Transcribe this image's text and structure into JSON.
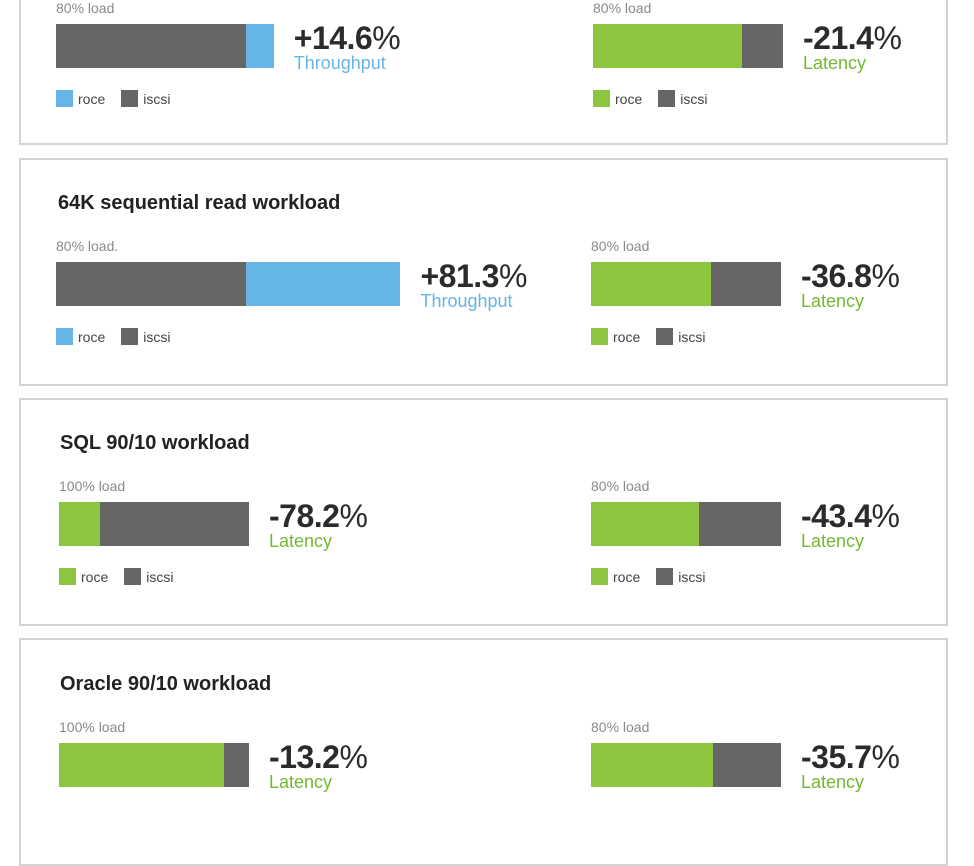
{
  "colors": {
    "roce_throughput": "#65b6e6",
    "roce_latency": "#8cc63f",
    "iscsi": "#666666",
    "throughput_text": "#65b6e6",
    "latency_text": "#72b832"
  },
  "legend": {
    "roce": "roce",
    "iscsi": "iscsi"
  },
  "chart_data": [
    {
      "type": "bar",
      "title": "",
      "panels": [
        {
          "load": "80% load",
          "metric": "Throughput",
          "sign": "+",
          "value": 14.6,
          "series": [
            {
              "name": "iscsi",
              "value": 1
            },
            {
              "name": "roce",
              "value": 1.146
            }
          ]
        },
        {
          "load": "80% load",
          "metric": "Latency",
          "sign": "-",
          "value": 21.4,
          "series": [
            {
              "name": "roce",
              "value": 0.786
            },
            {
              "name": "iscsi",
              "value": 1
            }
          ]
        }
      ]
    },
    {
      "type": "bar",
      "title": "64K sequential read workload",
      "panels": [
        {
          "load": "80% load.",
          "metric": "Throughput",
          "sign": "+",
          "value": 81.3,
          "series": [
            {
              "name": "iscsi",
              "value": 1
            },
            {
              "name": "roce",
              "value": 1.813
            }
          ]
        },
        {
          "load": "80% load",
          "metric": "Latency",
          "sign": "-",
          "value": 36.8,
          "series": [
            {
              "name": "roce",
              "value": 0.632
            },
            {
              "name": "iscsi",
              "value": 1
            }
          ]
        }
      ]
    },
    {
      "type": "bar",
      "title": "SQL 90/10 workload",
      "panels": [
        {
          "load": "100% load",
          "metric": "Latency",
          "sign": "-",
          "value": 78.2,
          "series": [
            {
              "name": "roce",
              "value": 0.218
            },
            {
              "name": "iscsi",
              "value": 1
            }
          ]
        },
        {
          "load": "80% load",
          "metric": "Latency",
          "sign": "-",
          "value": 43.4,
          "series": [
            {
              "name": "roce",
              "value": 0.566
            },
            {
              "name": "iscsi",
              "value": 1
            }
          ]
        }
      ]
    },
    {
      "type": "bar",
      "title": "Oracle 90/10 workload",
      "panels": [
        {
          "load": "100% load",
          "metric": "Latency",
          "sign": "-",
          "value": 13.2,
          "series": [
            {
              "name": "roce",
              "value": 0.868
            },
            {
              "name": "iscsi",
              "value": 1
            }
          ]
        },
        {
          "load": "80% load",
          "metric": "Latency",
          "sign": "-",
          "value": 35.7,
          "series": [
            {
              "name": "roce",
              "value": 0.643
            },
            {
              "name": "iscsi",
              "value": 1
            }
          ]
        }
      ]
    }
  ]
}
